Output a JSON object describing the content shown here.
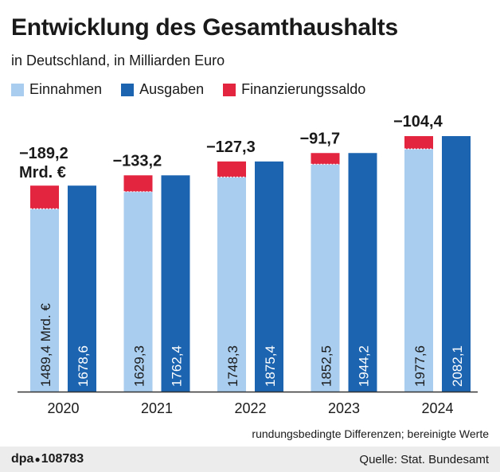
{
  "title": "Entwicklung des Gesamthaushalts",
  "subtitle": "in Deutschland, in Milliarden Euro",
  "legend": {
    "einnahmen": "Einnahmen",
    "ausgaben": "Ausgaben",
    "saldo": "Finanzierungssaldo"
  },
  "colors": {
    "einnahmen": "#a8cdee",
    "ausgaben": "#1c64b0",
    "saldo": "#e32540",
    "text_dark": "#1a1a1a",
    "text_light": "#ffffff",
    "axis": "#333333"
  },
  "chart_data": {
    "type": "bar",
    "categories": [
      "2020",
      "2021",
      "2022",
      "2023",
      "2024"
    ],
    "series": [
      {
        "name": "Einnahmen",
        "values": [
          1489.4,
          1629.3,
          1748.3,
          1852.5,
          1977.6
        ]
      },
      {
        "name": "Ausgaben",
        "values": [
          1678.6,
          1762.4,
          1875.4,
          1944.2,
          2082.1
        ]
      },
      {
        "name": "Finanzierungssaldo",
        "values": [
          -189.2,
          -133.2,
          -127.3,
          -91.7,
          -104.4
        ]
      }
    ],
    "einnahmen_labels": [
      "1489,4 Mrd. €",
      "1629,3",
      "1748,3",
      "1852,5",
      "1977,6"
    ],
    "ausgaben_labels": [
      "1678,6",
      "1762,4",
      "1875,4",
      "1944,2",
      "2082,1"
    ],
    "saldo_labels": [
      "−189,2",
      "−133,2",
      "−127,3",
      "−91,7",
      "−104,4"
    ],
    "saldo_unit": "Mrd. €",
    "ylim": [
      0,
      2100
    ],
    "title": "Entwicklung des Gesamthaushalts",
    "xlabel": "",
    "ylabel": ""
  },
  "note": "rundungsbedingte Differenzen; bereinigte Werte",
  "footer": {
    "agency": "dpa",
    "number": "108783",
    "source": "Quelle: Stat. Bundesamt"
  }
}
